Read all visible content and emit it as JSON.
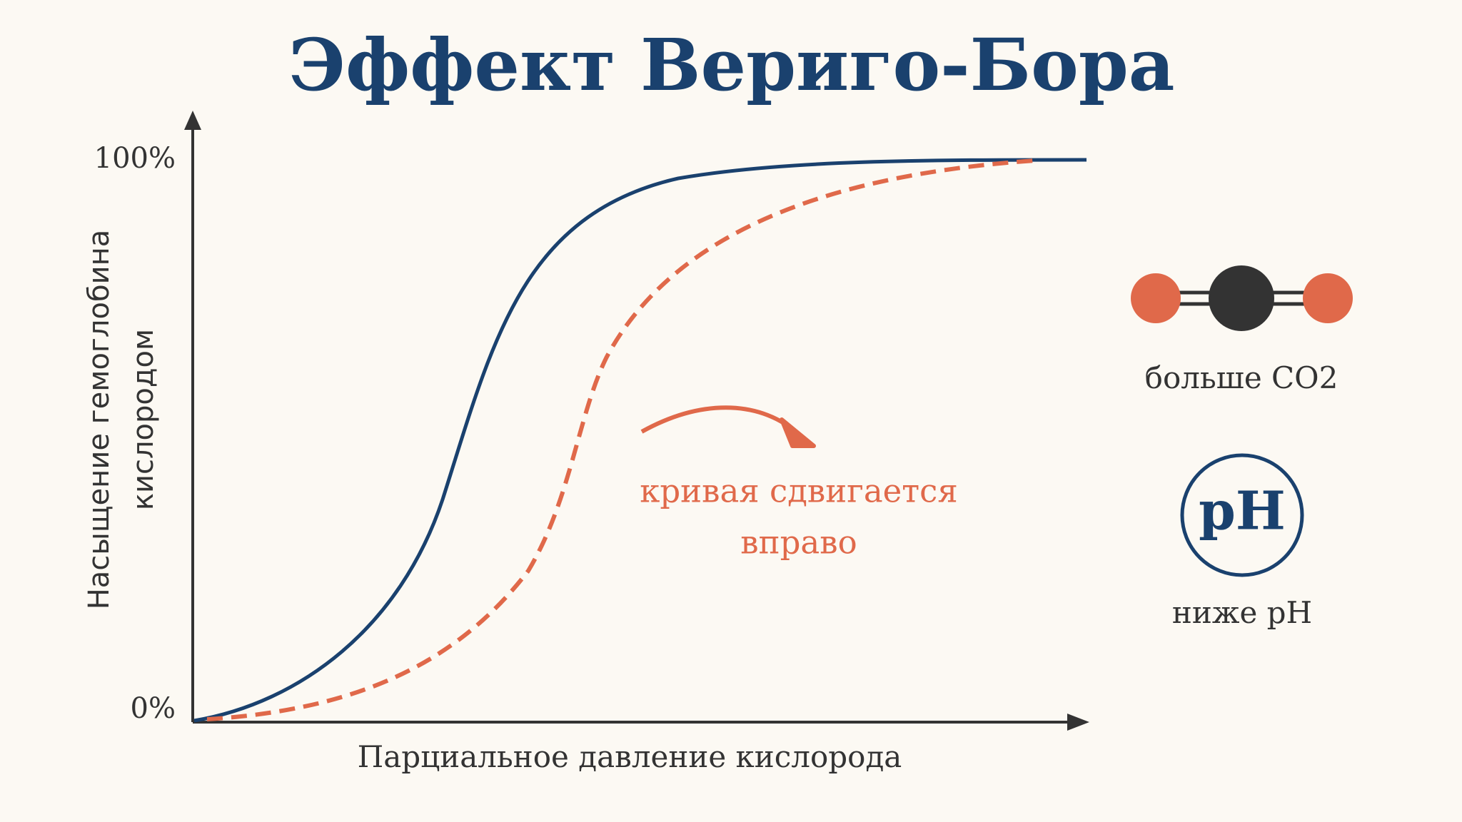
{
  "title": "Эффект Вериго-Бора",
  "chart": {
    "y_axis_label_lines": [
      "Насыщение гемоглобина",
      "кислородом"
    ],
    "y_top_label": "100%",
    "y_bottom_label": "0%",
    "x_axis_label": "Парциальное давление кислорода"
  },
  "annotation": {
    "lines": [
      "кривая сдвигается",
      "вправо"
    ]
  },
  "factors": {
    "co2_label": "больше CO2",
    "ph_symbol": "pH",
    "ph_label": "ниже pH"
  }
}
